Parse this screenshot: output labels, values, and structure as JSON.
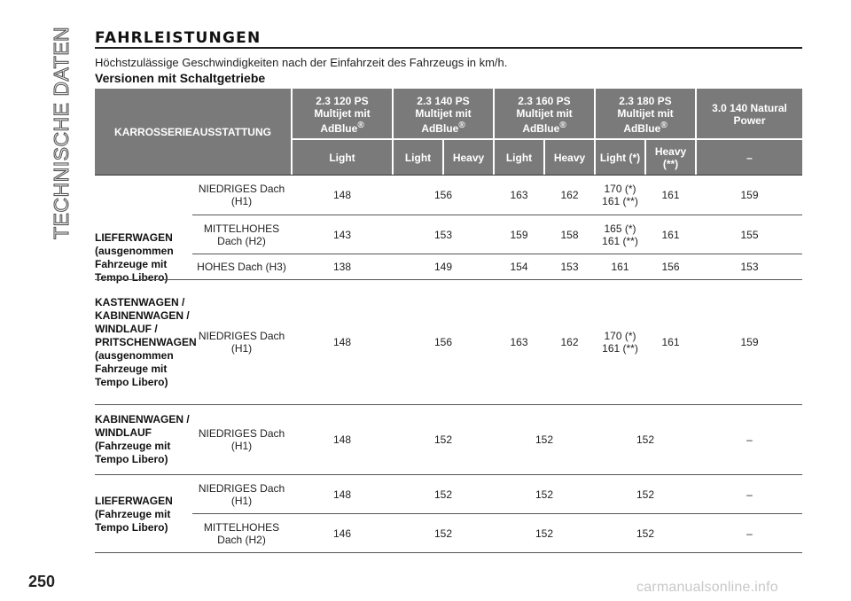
{
  "side_title": "TECHNISCHE DATEN",
  "page_number": "250",
  "watermark": "carmanualsonline.info",
  "section_title": "FAHRLEISTUNGEN",
  "subtitle": "Höchstzulässige Geschwindigkeiten nach der Einfahrzeit des Fahrzeugs in km/h.",
  "subheading": "Versionen mit Schaltgetriebe",
  "table": {
    "body_header": "KARROSSERIEAUSSTATTUNG",
    "engines": [
      {
        "l1": "2.3 120 PS",
        "l2": "Multijet mit",
        "l3": "AdBlue",
        "sup": "®"
      },
      {
        "l1": "2.3 140 PS",
        "l2": "Multijet mit",
        "l3": "AdBlue",
        "sup": "®"
      },
      {
        "l1": "2.3 160 PS",
        "l2": "Multijet mit",
        "l3": "AdBlue",
        "sup": "®"
      },
      {
        "l1": "2.3 180 PS",
        "l2": "Multijet mit",
        "l3": "AdBlue",
        "sup": "®"
      },
      {
        "l1": "3.0 140 Natural",
        "l2": "Power",
        "l3": "",
        "sup": ""
      }
    ],
    "subheaders": [
      "Light",
      "Light",
      "Heavy",
      "Light",
      "Heavy",
      "Light (*)",
      "Heavy (**)",
      "–"
    ],
    "groups": [
      {
        "label": "LIEFERWAGEN (ausgenommen Fahrzeuge mit Tempo Libero)",
        "rows": [
          {
            "roof": "NIEDRIGES Dach (H1)",
            "v": [
              "148",
              "156",
              "163",
              "162",
              "170 (*) 161 (**)",
              "161",
              "159"
            ]
          },
          {
            "roof": "MITTELHOHES Dach (H2)",
            "v": [
              "143",
              "153",
              "159",
              "158",
              "165 (*) 161 (**)",
              "161",
              "155"
            ]
          },
          {
            "roof": "HOHES Dach (H3)",
            "v": [
              "138",
              "149",
              "154",
              "153",
              "161",
              "156",
              "153"
            ]
          }
        ]
      },
      {
        "label": "KASTENWAGEN / KABINENWAGEN / WINDLAUF / PRITSCHENWAGEN (ausgenommen Fahrzeuge mit Tempo Libero)",
        "rows": [
          {
            "roof": "NIEDRIGES Dach (H1)",
            "v": [
              "148",
              "156",
              "163",
              "162",
              "170 (*) 161 (**)",
              "161",
              "159"
            ]
          }
        ]
      },
      {
        "label": "KABINENWAGEN / WINDLAUF (Fahrzeuge mit Tempo Libero)",
        "rows": [
          {
            "roof": "NIEDRIGES Dach (H1)",
            "v": [
              "148",
              "152",
              "152",
              "152",
              "–"
            ]
          }
        ]
      },
      {
        "label": "LIEFERWAGEN (Fahrzeuge mit Tempo Libero)",
        "rows": [
          {
            "roof": "NIEDRIGES Dach (H1)",
            "v": [
              "148",
              "152",
              "152",
              "152",
              "–"
            ]
          },
          {
            "roof": "MITTELHOHES Dach (H2)",
            "v": [
              "146",
              "152",
              "152",
              "152",
              "–"
            ]
          }
        ]
      }
    ]
  }
}
